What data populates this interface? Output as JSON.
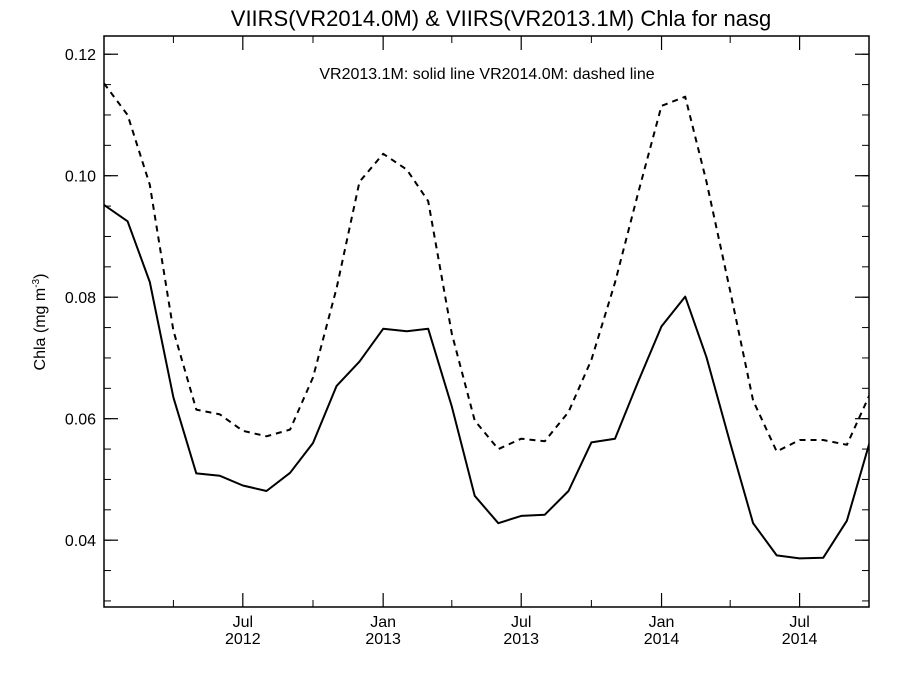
{
  "chart_data": {
    "type": "line",
    "title": "VIIRS(VR2014.0M) & VIIRS(VR2013.1M)  Chla for nasg",
    "ylabel": "Chla (mg m",
    "ylabel_superscript": "-3",
    "ylabel_close": ")",
    "annotation": "VR2013.1M: solid line   VR2014.0M: dashed line",
    "ylim": [
      0.029,
      0.123
    ],
    "xlim": [
      "2012-01-01",
      "2014-09-30"
    ],
    "yticks": [
      "0.04",
      "0.06",
      "0.08",
      "0.10",
      "0.12"
    ],
    "xticks": [
      {
        "month": "Jul",
        "year": "2012",
        "date": "2012-07-01"
      },
      {
        "month": "Jan",
        "year": "2013",
        "date": "2013-01-01"
      },
      {
        "month": "Jul",
        "year": "2013",
        "date": "2013-07-01"
      },
      {
        "month": "Jan",
        "year": "2014",
        "date": "2014-01-01"
      },
      {
        "month": "Jul",
        "year": "2014",
        "date": "2014-07-01"
      }
    ],
    "x": [
      "2012-01-01",
      "2012-02-01",
      "2012-03-01",
      "2012-04-01",
      "2012-05-01",
      "2012-06-01",
      "2012-07-01",
      "2012-08-01",
      "2012-09-01",
      "2012-10-01",
      "2012-11-01",
      "2012-12-01",
      "2013-01-01",
      "2013-02-01",
      "2013-03-01",
      "2013-04-01",
      "2013-05-01",
      "2013-06-01",
      "2013-07-01",
      "2013-08-01",
      "2013-09-01",
      "2013-10-01",
      "2013-11-01",
      "2013-12-01",
      "2014-01-01",
      "2014-02-01",
      "2014-03-01",
      "2014-04-01",
      "2014-05-01",
      "2014-06-01",
      "2014-07-01",
      "2014-08-01",
      "2014-09-01",
      "2014-10-01"
    ],
    "series": [
      {
        "style": "solid",
        "values": [
          0.0952,
          0.0925,
          0.0825,
          0.0635,
          0.051,
          0.0506,
          0.049,
          0.0481,
          0.0511,
          0.056,
          0.0654,
          0.0694,
          0.0748,
          0.0744,
          0.0748,
          0.062,
          0.0473,
          0.0428,
          0.044,
          0.0442,
          0.0481,
          0.0561,
          0.0567,
          0.066,
          0.0752,
          0.0801,
          0.0701,
          0.056,
          0.0428,
          0.0375,
          0.037,
          0.0371,
          0.0432,
          0.0562
        ]
      },
      {
        "style": "dashed",
        "values": [
          0.1152,
          0.11,
          0.0985,
          0.0745,
          0.0615,
          0.0607,
          0.058,
          0.0571,
          0.0582,
          0.0668,
          0.0815,
          0.099,
          0.1036,
          0.101,
          0.0958,
          0.074,
          0.0597,
          0.055,
          0.0567,
          0.0563,
          0.0611,
          0.0697,
          0.0824,
          0.097,
          0.1115,
          0.113,
          0.099,
          0.081,
          0.063,
          0.0546,
          0.0565,
          0.0565,
          0.0557,
          0.064
        ]
      }
    ],
    "grid": false,
    "legend": "none"
  }
}
